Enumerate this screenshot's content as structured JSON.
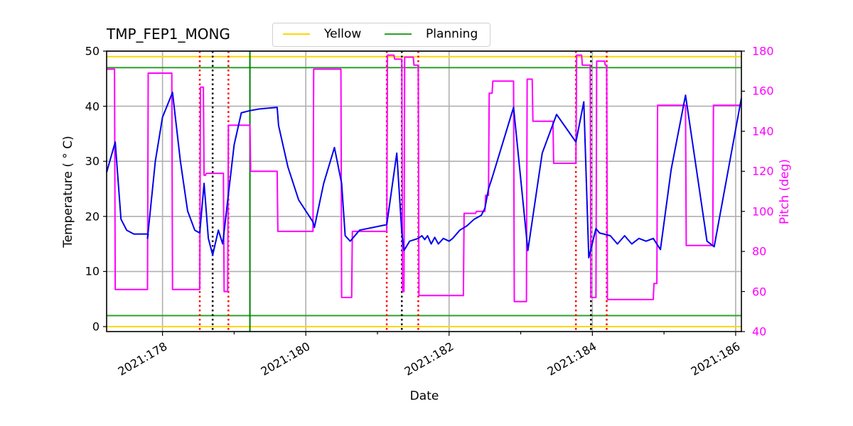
{
  "chart_data": {
    "type": "line",
    "title": "TMP_FEP1_MONG",
    "xlabel": "Date",
    "ylabel": "Temperature ($^\\circ$C)",
    "ylabel_display": "Temperature ( ° C)",
    "ylabel_right": "Pitch (deg)",
    "xlim": [
      177.22,
      186.08
    ],
    "ylim": [
      -0.9,
      50
    ],
    "ylim_right": [
      40,
      180
    ],
    "grid": true,
    "legend_position": "upper center (outside top)",
    "x_ticks": [
      "2021:178",
      "2021:180",
      "2021:182",
      "2021:184",
      "2021:186"
    ],
    "x_tick_values": [
      178,
      180,
      182,
      184,
      186
    ],
    "y_ticks_left": [
      0,
      10,
      20,
      30,
      40,
      50
    ],
    "y_ticks_right": [
      40,
      60,
      80,
      100,
      120,
      140,
      160,
      180
    ],
    "legend": [
      {
        "name": "Yellow",
        "color": "#ffd700"
      },
      {
        "name": "Planning",
        "color": "#2ca02c"
      }
    ],
    "limit_lines": [
      {
        "name": "Yellow",
        "axis": "left",
        "values": [
          49.0,
          0.0
        ],
        "color": "#ffd700"
      },
      {
        "name": "Planning",
        "axis": "left",
        "values": [
          47.0,
          2.0
        ],
        "color": "#2ca02c"
      }
    ],
    "vertical_lines": [
      {
        "x": 178.52,
        "style": "dotted",
        "color": "#ff0000"
      },
      {
        "x": 178.7,
        "style": "dotted",
        "color": "#000000"
      },
      {
        "x": 178.92,
        "style": "dotted",
        "color": "#ff0000"
      },
      {
        "x": 179.22,
        "style": "solid",
        "color": "#008000"
      },
      {
        "x": 181.13,
        "style": "dotted",
        "color": "#ff0000"
      },
      {
        "x": 181.34,
        "style": "dotted",
        "color": "#000000"
      },
      {
        "x": 181.57,
        "style": "dotted",
        "color": "#ff0000"
      },
      {
        "x": 183.77,
        "style": "dotted",
        "color": "#ff0000"
      },
      {
        "x": 183.98,
        "style": "dotted",
        "color": "#000000"
      },
      {
        "x": 184.2,
        "style": "dotted",
        "color": "#ff0000"
      }
    ],
    "series": [
      {
        "name": "TMP_FEP1_MONG",
        "axis": "left",
        "color": "#0000ee",
        "x": [
          177.22,
          177.34,
          177.42,
          177.5,
          177.6,
          177.8,
          177.79,
          177.9,
          178.0,
          178.14,
          178.25,
          178.35,
          178.45,
          178.52,
          178.58,
          178.64,
          178.7,
          178.78,
          178.84,
          178.92,
          179.0,
          179.1,
          179.22,
          179.35,
          179.6,
          179.62,
          179.75,
          179.9,
          180.1,
          180.12,
          180.25,
          180.4,
          180.5,
          180.55,
          180.62,
          180.75,
          181.13,
          181.27,
          181.34,
          181.37,
          181.45,
          181.57,
          181.62,
          181.66,
          181.7,
          181.75,
          181.8,
          181.85,
          181.92,
          182.0,
          182.05,
          182.15,
          182.25,
          182.35,
          182.45,
          182.5,
          182.55,
          182.6,
          182.9,
          183.1,
          183.3,
          183.5,
          183.77,
          183.88,
          183.95,
          184.05,
          184.1,
          184.25,
          184.35,
          184.45,
          184.55,
          184.65,
          184.75,
          184.85,
          184.95,
          185.1,
          185.3,
          185.6,
          185.7,
          186.08
        ],
        "values": [
          28.0,
          33.5,
          19.5,
          17.5,
          16.8,
          16.8,
          16.0,
          30.0,
          38.0,
          42.5,
          30.0,
          21.0,
          17.5,
          17.0,
          26.0,
          16.0,
          13.0,
          17.5,
          15.0,
          24.0,
          33.0,
          38.8,
          39.2,
          39.5,
          39.8,
          36.5,
          29.0,
          23.0,
          19.0,
          18.0,
          26.0,
          32.5,
          26.0,
          16.5,
          15.5,
          17.5,
          18.5,
          31.5,
          17.0,
          13.8,
          15.5,
          16.0,
          16.5,
          15.8,
          16.5,
          15.0,
          16.2,
          15.0,
          16.0,
          15.5,
          16.0,
          17.5,
          18.3,
          19.5,
          20.2,
          21.5,
          25.0,
          27.0,
          39.8,
          13.8,
          31.5,
          38.5,
          33.5,
          40.8,
          12.5,
          17.8,
          17.0,
          16.5,
          15.0,
          16.5,
          15.0,
          16.0,
          15.5,
          16.0,
          14.0,
          28.5,
          42.0,
          15.5,
          14.5,
          41.5
        ]
      },
      {
        "name": "Pitch",
        "axis": "right",
        "color": "#ff00ff",
        "x": [
          177.22,
          177.33,
          177.34,
          177.79,
          177.8,
          178.13,
          178.14,
          178.52,
          178.53,
          178.57,
          178.58,
          178.6,
          178.61,
          178.85,
          178.86,
          178.91,
          178.92,
          179.22,
          179.23,
          179.6,
          179.61,
          180.1,
          180.11,
          180.49,
          180.5,
          180.64,
          180.65,
          181.13,
          181.14,
          181.23,
          181.24,
          181.34,
          181.35,
          181.37,
          181.38,
          181.5,
          181.51,
          181.57,
          181.58,
          182.2,
          182.21,
          182.37,
          182.38,
          182.5,
          182.51,
          182.55,
          182.56,
          182.6,
          182.61,
          182.9,
          182.91,
          183.08,
          183.09,
          183.16,
          183.17,
          183.45,
          183.46,
          183.77,
          183.78,
          183.85,
          183.86,
          183.97,
          183.98,
          184.05,
          184.06,
          184.17,
          184.18,
          184.2,
          184.21,
          184.85,
          184.86,
          184.9,
          184.91,
          185.3,
          185.31,
          185.68,
          185.69,
          186.08
        ],
        "values": [
          171,
          171,
          61,
          61,
          169,
          169,
          61,
          61,
          162,
          162,
          118,
          118,
          119,
          119,
          60,
          60,
          143,
          143,
          120,
          120,
          90,
          90,
          171,
          171,
          57,
          57,
          90,
          90,
          178,
          178,
          176,
          176,
          60,
          60,
          177,
          177,
          173,
          173,
          58,
          58,
          99,
          99,
          100,
          100,
          108,
          108,
          159,
          159,
          165,
          165,
          55,
          55,
          166,
          166,
          145,
          145,
          124,
          124,
          178,
          178,
          173,
          173,
          57,
          57,
          175,
          175,
          173,
          173,
          56,
          56,
          64,
          64,
          153,
          153,
          83,
          83,
          153,
          153
        ]
      }
    ]
  }
}
